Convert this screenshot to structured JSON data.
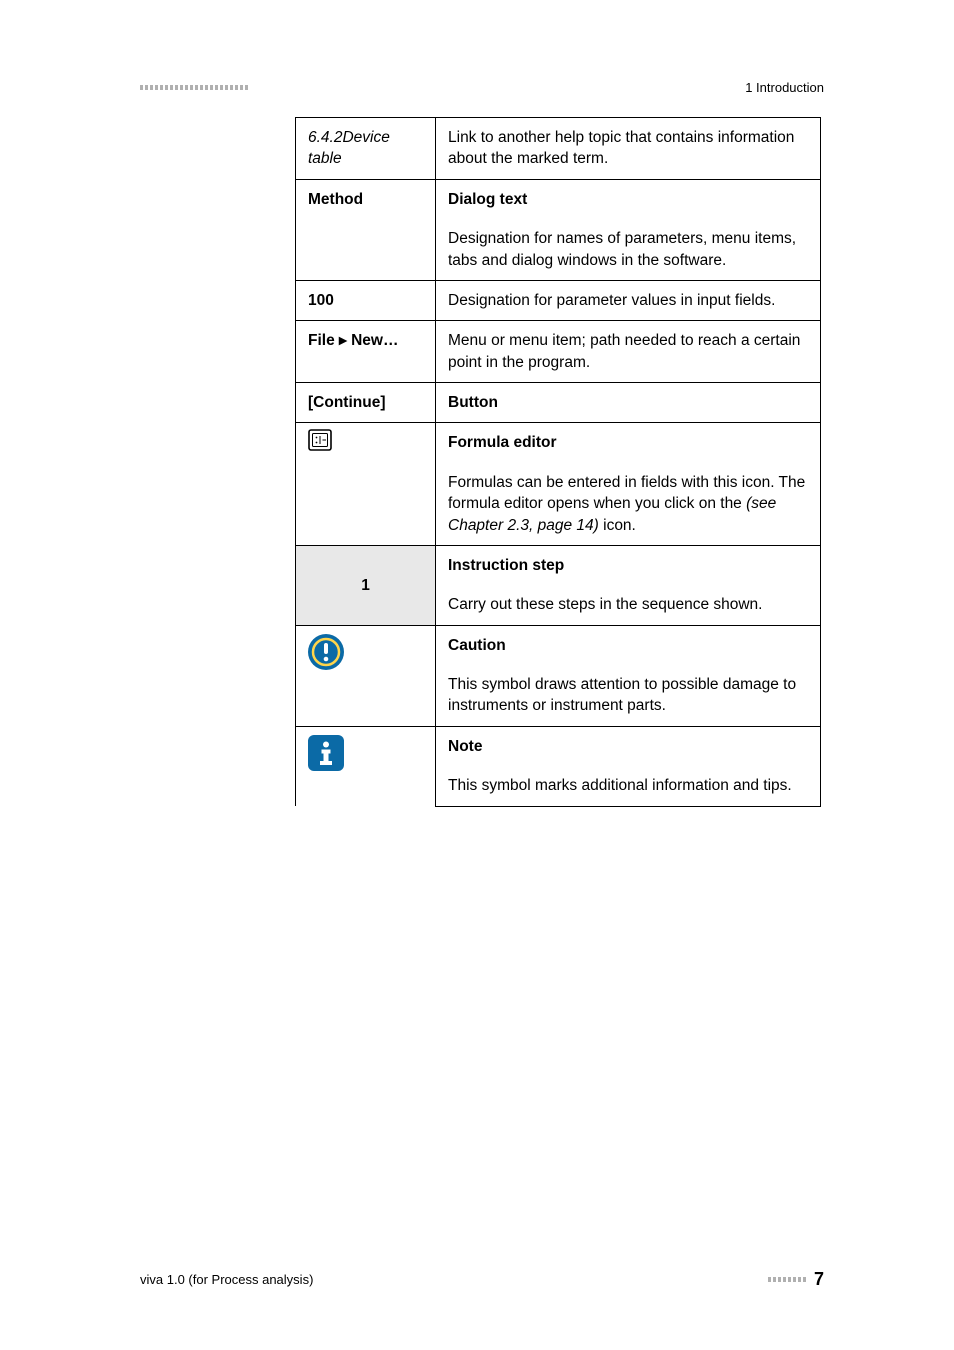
{
  "header": {
    "section_title": "1 Introduction"
  },
  "table": {
    "rows": [
      {
        "left_text": "6.4.2Device table",
        "left_style": "italic",
        "right_text": "Link to another help topic that contains information about the marked term."
      },
      {
        "left_text": "Method",
        "left_style": "bold",
        "right_title": "Dialog text",
        "right_title_style": "bold",
        "right_body": "Designation for names of parameters, menu items, tabs and dialog windows in the software."
      },
      {
        "left_text": "100",
        "left_style": "bold",
        "right_text": "Designation for parameter values in input fields."
      },
      {
        "left_text": "File ▸ New…",
        "left_style": "bold",
        "right_text": "Menu or menu item; path needed to reach a certain point in the program."
      },
      {
        "left_text": "[Continue]",
        "left_style": "bold",
        "right_text": "Button",
        "right_style": "bold"
      },
      {
        "left_icon": "formula",
        "right_title": "Formula editor",
        "right_title_style": "bold",
        "right_body_pre": "Formulas can be entered in fields with this icon. The formula editor opens when you click on the ",
        "right_body_italic": "(see Chapter 2.3, page 14)",
        "right_body_post": " icon."
      },
      {
        "left_text": "1",
        "left_style": "bold",
        "left_bg": "#e8e8e8",
        "right_title": "Instruction step",
        "right_title_style": "bold",
        "right_body": "Carry out these steps in the sequence shown."
      },
      {
        "left_icon": "caution",
        "right_title": "Caution",
        "right_title_style": "bold",
        "right_body": "This symbol draws attention to possible damage to instruments or instrument parts."
      },
      {
        "left_icon": "note",
        "right_title": "Note",
        "right_title_style": "bold",
        "right_body": "This symbol marks additional information and tips."
      }
    ]
  },
  "icons": {
    "formula": {
      "border_color": "#000000",
      "fill": "#ffffff"
    },
    "caution": {
      "bg": "#0b6aa6",
      "ring": "#ffd54a",
      "mark": "#ffffff"
    },
    "note": {
      "bg": "#0b6aa6",
      "mark": "#ffffff"
    }
  },
  "footer": {
    "left_text": "viva 1.0 (for Process analysis)",
    "page_number": "7"
  },
  "colors": {
    "dash": "#b0b0b0",
    "text": "#000000",
    "table_border": "#000000",
    "instr_bg": "#e8e8e8"
  },
  "dashes": {
    "header_count": 22,
    "footer_count": 8
  }
}
